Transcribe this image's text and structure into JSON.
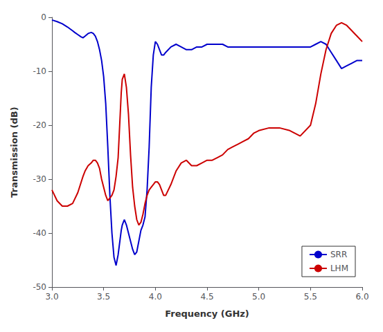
{
  "chart_data": {
    "type": "line",
    "xlabel": "Frequency (GHz)",
    "ylabel": "Transmission (dB)",
    "xlim": [
      3.0,
      6.0
    ],
    "ylim": [
      -50,
      0
    ],
    "xticks": [
      {
        "value": 3.0,
        "label": "3.0"
      },
      3.5,
      {
        "value": 4.0,
        "label": "4.0"
      },
      4.5,
      {
        "value": 5.0,
        "label": "5.0"
      },
      5.5,
      {
        "value": 6.0,
        "label": "6.0"
      }
    ],
    "yticks": [
      0,
      -10,
      -20,
      -30,
      -40,
      -50
    ],
    "grid": false,
    "legend": "lower right",
    "series": [
      {
        "name": "SRR",
        "color": "#0000CC",
        "x": [
          3.0,
          3.05,
          3.1,
          3.15,
          3.2,
          3.22,
          3.25,
          3.28,
          3.3,
          3.32,
          3.35,
          3.38,
          3.4,
          3.42,
          3.44,
          3.46,
          3.48,
          3.5,
          3.52,
          3.54,
          3.56,
          3.58,
          3.6,
          3.62,
          3.64,
          3.65,
          3.66,
          3.67,
          3.68,
          3.69,
          3.7,
          3.72,
          3.74,
          3.76,
          3.78,
          3.8,
          3.82,
          3.84,
          3.86,
          3.88,
          3.9,
          3.92,
          3.94,
          3.96,
          3.98,
          4.0,
          4.02,
          4.04,
          4.06,
          4.08,
          4.1,
          4.15,
          4.2,
          4.25,
          4.3,
          4.35,
          4.4,
          4.45,
          4.5,
          4.55,
          4.6,
          4.65,
          4.7,
          4.75,
          4.8,
          4.85,
          4.9,
          4.95,
          5.0,
          5.05,
          5.1,
          5.15,
          5.2,
          5.25,
          5.3,
          5.35,
          5.4,
          5.45,
          5.5,
          5.55,
          5.6,
          5.65,
          5.7,
          5.75,
          5.8,
          5.85,
          5.9,
          5.95,
          6.0
        ],
        "values": [
          -0.5,
          -0.8,
          -1.2,
          -1.8,
          -2.5,
          -2.8,
          -3.2,
          -3.6,
          -3.8,
          -3.5,
          -3.0,
          -2.8,
          -3.0,
          -3.5,
          -4.5,
          -6.0,
          -8.0,
          -11.0,
          -16.0,
          -24.0,
          -33.0,
          -40.0,
          -44.5,
          -46.0,
          -44.0,
          -42.5,
          -41.0,
          -39.5,
          -38.5,
          -38.0,
          -37.5,
          -38.5,
          -40.0,
          -41.5,
          -43.0,
          -44.0,
          -43.5,
          -41.5,
          -39.5,
          -38.5,
          -37.0,
          -32.0,
          -24.0,
          -13.0,
          -7.0,
          -4.5,
          -5.0,
          -6.0,
          -7.0,
          -7.0,
          -6.5,
          -5.5,
          -5.0,
          -5.5,
          -6.0,
          -6.0,
          -5.5,
          -5.5,
          -5.0,
          -5.0,
          -5.0,
          -5.0,
          -5.5,
          -5.5,
          -5.5,
          -5.5,
          -5.5,
          -5.5,
          -5.5,
          -5.5,
          -5.5,
          -5.5,
          -5.5,
          -5.5,
          -5.5,
          -5.5,
          -5.5,
          -5.5,
          -5.5,
          -5.0,
          -4.5,
          -5.0,
          -6.5,
          -8.0,
          -9.5,
          -9.0,
          -8.5,
          -8.0,
          -8.0
        ]
      },
      {
        "name": "LHM",
        "color": "#CC0000",
        "x": [
          3.0,
          3.05,
          3.1,
          3.15,
          3.2,
          3.25,
          3.3,
          3.32,
          3.35,
          3.38,
          3.4,
          3.42,
          3.44,
          3.46,
          3.48,
          3.5,
          3.52,
          3.54,
          3.56,
          3.58,
          3.6,
          3.62,
          3.64,
          3.65,
          3.66,
          3.67,
          3.68,
          3.7,
          3.72,
          3.74,
          3.76,
          3.78,
          3.8,
          3.82,
          3.84,
          3.86,
          3.88,
          3.9,
          3.92,
          3.94,
          3.96,
          3.98,
          4.0,
          4.02,
          4.04,
          4.06,
          4.08,
          4.1,
          4.15,
          4.2,
          4.25,
          4.3,
          4.35,
          4.4,
          4.45,
          4.5,
          4.55,
          4.6,
          4.65,
          4.7,
          4.75,
          4.8,
          4.85,
          4.9,
          4.95,
          5.0,
          5.1,
          5.2,
          5.3,
          5.4,
          5.5,
          5.55,
          5.6,
          5.65,
          5.7,
          5.75,
          5.8,
          5.85,
          5.9,
          5.95,
          6.0
        ],
        "values": [
          -32.0,
          -34.0,
          -35.0,
          -35.0,
          -34.5,
          -32.5,
          -29.5,
          -28.5,
          -27.5,
          -27.0,
          -26.5,
          -26.5,
          -27.0,
          -28.0,
          -30.0,
          -31.5,
          -33.0,
          -34.0,
          -33.5,
          -33.0,
          -32.0,
          -29.5,
          -26.0,
          -22.0,
          -18.0,
          -14.0,
          -11.5,
          -10.5,
          -13.0,
          -18.0,
          -25.5,
          -31.5,
          -35.0,
          -37.5,
          -38.5,
          -38.0,
          -36.5,
          -34.5,
          -33.0,
          -32.0,
          -31.5,
          -31.0,
          -30.5,
          -30.5,
          -31.0,
          -32.0,
          -33.0,
          -33.0,
          -31.0,
          -28.5,
          -27.0,
          -26.5,
          -27.5,
          -27.5,
          -27.0,
          -26.5,
          -26.5,
          -26.0,
          -25.5,
          -24.5,
          -24.0,
          -23.5,
          -23.0,
          -22.5,
          -21.5,
          -21.0,
          -20.5,
          -20.5,
          -21.0,
          -22.0,
          -20.0,
          -16.0,
          -10.5,
          -6.0,
          -3.0,
          -1.5,
          -1.0,
          -1.5,
          -2.5,
          -3.5,
          -4.5
        ]
      }
    ]
  }
}
